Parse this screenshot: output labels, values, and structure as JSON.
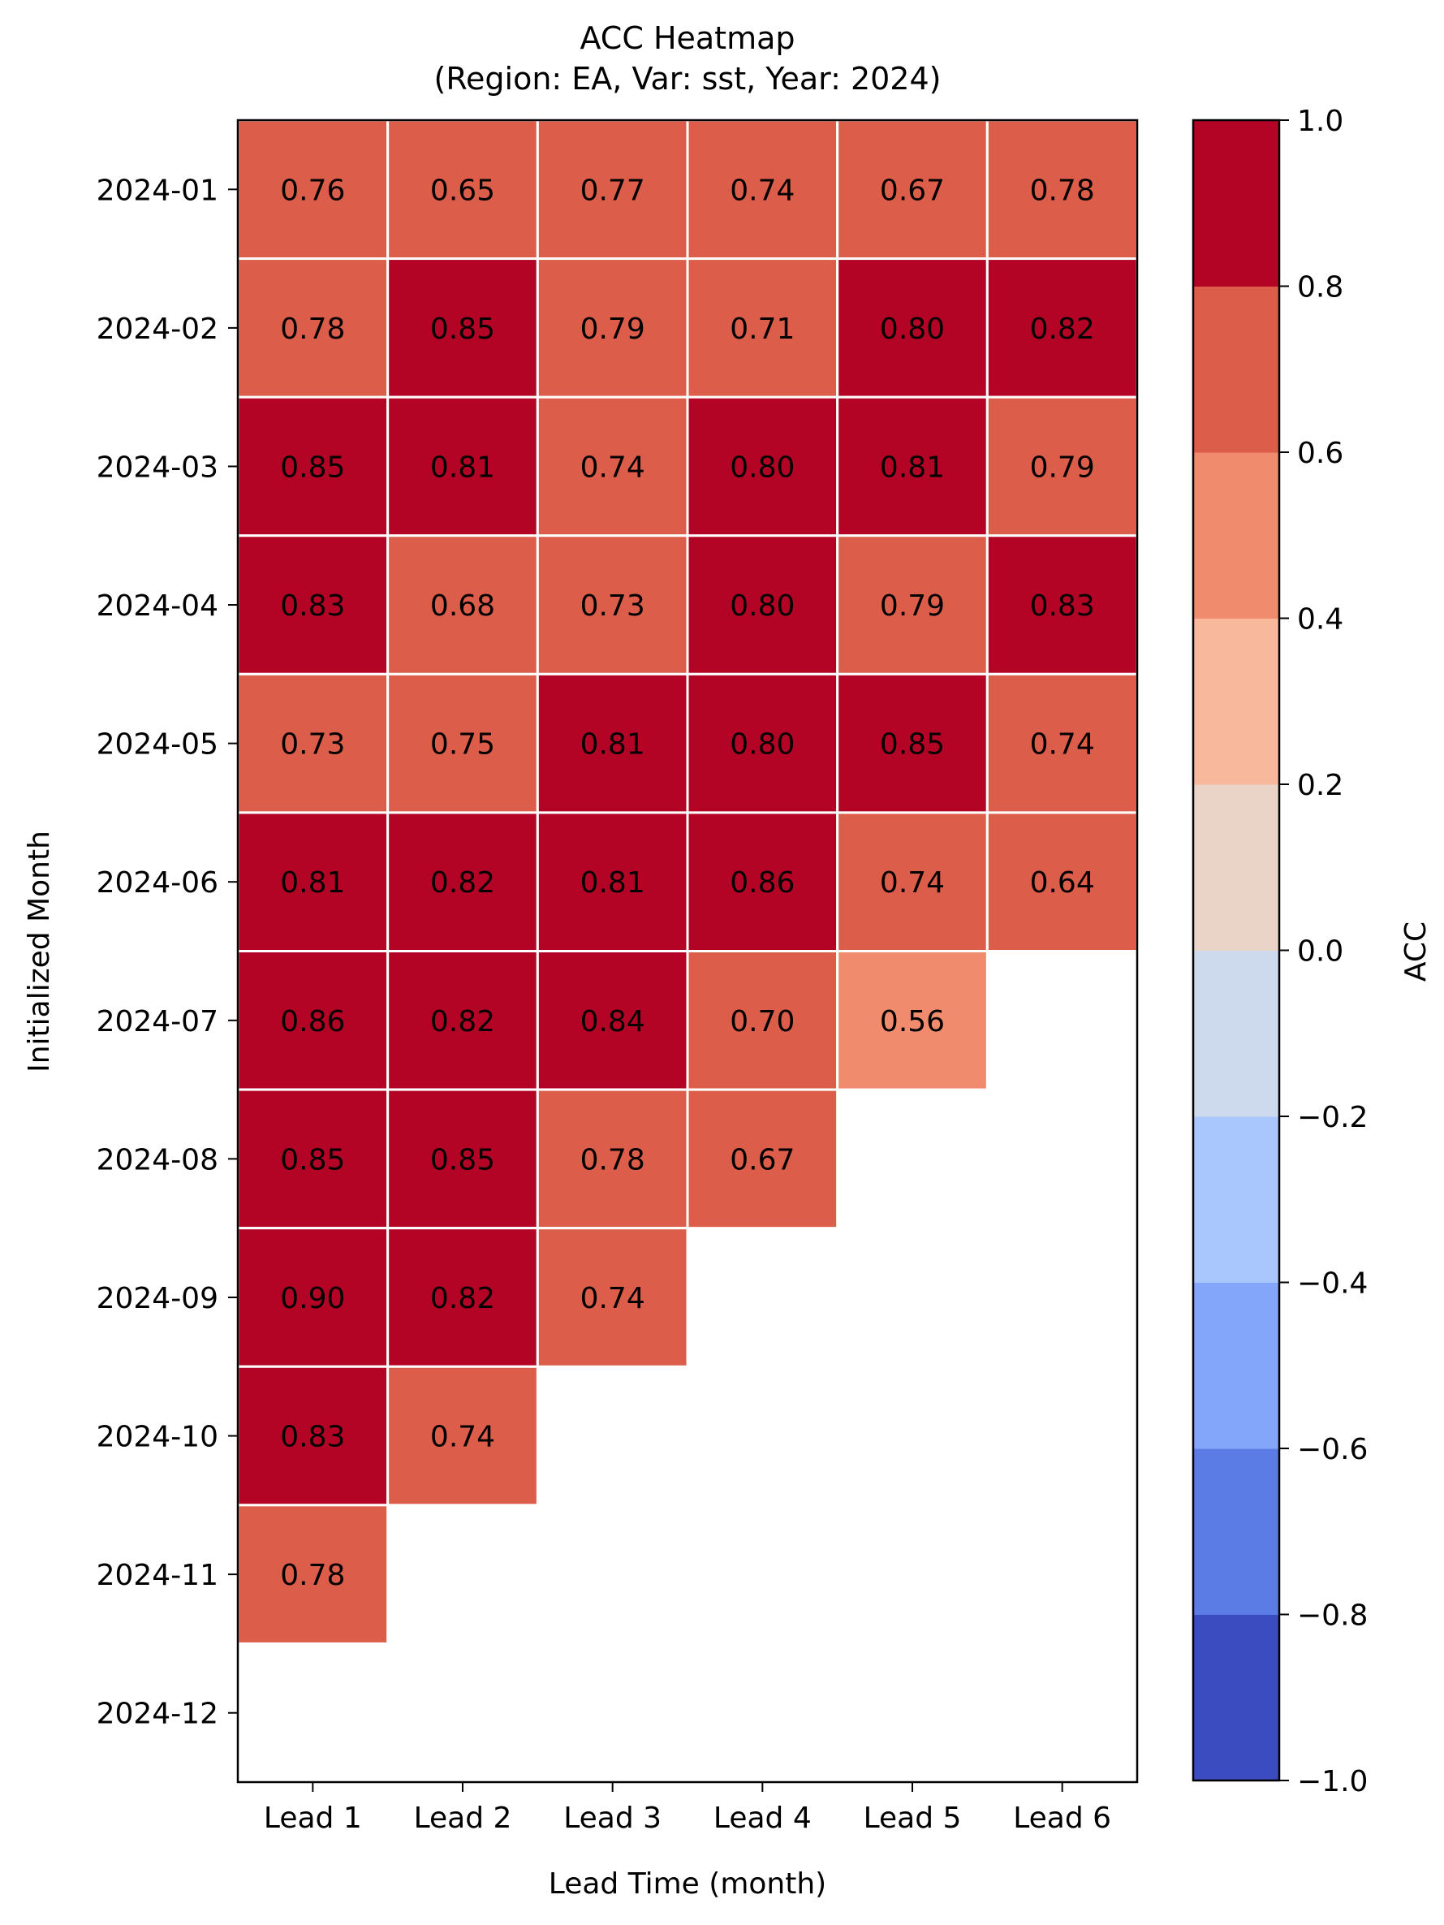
{
  "chart_data": {
    "type": "heatmap",
    "title": "ACC Heatmap",
    "subtitle": "(Region: EA, Var: sst, Year: 2024)",
    "xlabel": "Lead Time (month)",
    "ylabel": "Initialized Month",
    "x_categories": [
      "Lead 1",
      "Lead 2",
      "Lead 3",
      "Lead 4",
      "Lead 5",
      "Lead 6"
    ],
    "y_categories": [
      "2024-01",
      "2024-02",
      "2024-03",
      "2024-04",
      "2024-05",
      "2024-06",
      "2024-07",
      "2024-08",
      "2024-09",
      "2024-10",
      "2024-11",
      "2024-12"
    ],
    "values": [
      [
        0.76,
        0.65,
        0.77,
        0.74,
        0.67,
        0.78
      ],
      [
        0.78,
        0.85,
        0.79,
        0.71,
        0.8,
        0.82
      ],
      [
        0.85,
        0.81,
        0.74,
        0.8,
        0.81,
        0.79
      ],
      [
        0.83,
        0.68,
        0.73,
        0.8,
        0.79,
        0.83
      ],
      [
        0.73,
        0.75,
        0.81,
        0.8,
        0.85,
        0.74
      ],
      [
        0.81,
        0.82,
        0.81,
        0.86,
        0.74,
        0.64
      ],
      [
        0.86,
        0.82,
        0.84,
        0.7,
        0.56,
        null
      ],
      [
        0.85,
        0.85,
        0.78,
        0.67,
        null,
        null
      ],
      [
        0.9,
        0.82,
        0.74,
        null,
        null,
        null
      ],
      [
        0.83,
        0.74,
        null,
        null,
        null,
        null
      ],
      [
        0.78,
        null,
        null,
        null,
        null,
        null
      ],
      [
        null,
        null,
        null,
        null,
        null,
        null
      ]
    ],
    "colorbar": {
      "label": "ACC",
      "range": [
        -1.0,
        1.0
      ],
      "boundaries": [
        -1.0,
        -0.8,
        -0.6,
        -0.4,
        -0.2,
        0.0,
        0.2,
        0.4,
        0.6,
        0.8,
        1.0
      ],
      "colors": [
        "#3b4cc0",
        "#5b7ce5",
        "#84a6fa",
        "#aac7fd",
        "#cdd9ec",
        "#ead4c8",
        "#f7b89c",
        "#f08b6e",
        "#dc5d4a",
        "#b40426"
      ],
      "tick_labels": [
        "−1.0",
        "−0.8",
        "−0.6",
        "−0.4",
        "−0.2",
        "0.0",
        "0.2",
        "0.4",
        "0.6",
        "0.8",
        "1.0"
      ]
    }
  }
}
